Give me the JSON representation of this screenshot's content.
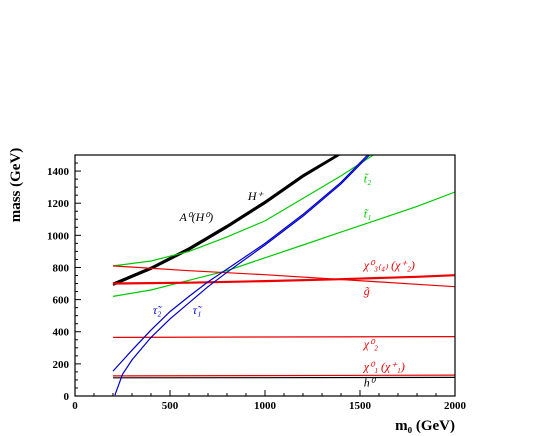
{
  "chart_data": {
    "type": "line",
    "xlabel": "m₀ (GeV)",
    "ylabel": "mass (GeV)",
    "xlim": [
      0,
      2000
    ],
    "ylim": [
      0,
      1500
    ],
    "xticks": [
      0,
      500,
      1000,
      1500,
      2000
    ],
    "yticks": [
      0,
      200,
      400,
      600,
      800,
      1000,
      1200,
      1400
    ],
    "grid": false,
    "colors": {
      "higgs": "#000000",
      "squark": "#00cc00",
      "gaugino": "#ee0000",
      "slepton": "#0000cc"
    },
    "series": [
      {
        "name": "A⁰(H⁰)",
        "color": "#000000",
        "x": [
          200,
          400,
          600,
          800,
          1000,
          1200,
          1390
        ],
        "y": [
          690,
          790,
          910,
          1050,
          1200,
          1365,
          1500
        ]
      },
      {
        "name": "H⁺",
        "color": "#000000",
        "x": [
          200,
          400,
          600,
          800,
          1000,
          1200,
          1380
        ],
        "y": [
          700,
          800,
          920,
          1060,
          1210,
          1375,
          1500
        ]
      },
      {
        "name": "t̃₂",
        "color": "#00cc00",
        "x": [
          200,
          400,
          600,
          800,
          1000,
          1200,
          1400,
          1570
        ],
        "y": [
          810,
          840,
          900,
          990,
          1090,
          1230,
          1370,
          1500
        ]
      },
      {
        "name": "t̃₁",
        "color": "#00cc00",
        "x": [
          200,
          400,
          600,
          800,
          1000,
          1200,
          1400,
          1600,
          1800,
          2000
        ],
        "y": [
          620,
          660,
          720,
          780,
          860,
          940,
          1020,
          1100,
          1180,
          1270
        ]
      },
      {
        "name": "χ⁰₃₍₄₎ (χ⁺₂)",
        "color": "#ee0000",
        "x": [
          200,
          600,
          1000,
          1400,
          1800,
          2000
        ],
        "y": [
          700,
          705,
          715,
          727,
          742,
          752
        ]
      },
      {
        "name": "g̃",
        "color": "#ee0000",
        "x": [
          200,
          600,
          1000,
          1400,
          1800,
          2000
        ],
        "y": [
          810,
          780,
          755,
          725,
          695,
          680
        ]
      },
      {
        "name": "χ⁰₂",
        "color": "#ee0000",
        "x": [
          200,
          1000,
          2000
        ],
        "y": [
          365,
          367,
          370
        ]
      },
      {
        "name": "χ⁰₁ (χ⁺₁)",
        "color": "#ee0000",
        "x": [
          200,
          1000,
          2000
        ],
        "y": [
          125,
          127,
          130
        ]
      },
      {
        "name": "h⁰",
        "color": "#000000",
        "x": [
          200,
          1000,
          2000
        ],
        "y": [
          113,
          114,
          116
        ]
      },
      {
        "name": "τ̃₂",
        "color": "#0000cc",
        "x": [
          200,
          300,
          400,
          500,
          600,
          700,
          800,
          1000,
          1200,
          1400,
          1540
        ],
        "y": [
          155,
          285,
          410,
          525,
          620,
          710,
          790,
          950,
          1130,
          1330,
          1500
        ]
      },
      {
        "name": "τ̃₁",
        "color": "#0000cc",
        "x": [
          210,
          250,
          300,
          400,
          500,
          600,
          700,
          800,
          1000,
          1200,
          1400,
          1550
        ],
        "y": [
          5,
          135,
          225,
          365,
          480,
          580,
          680,
          770,
          940,
          1120,
          1320,
          1500
        ]
      }
    ],
    "labels": [
      {
        "text": "H⁺",
        "x": 910,
        "y": 1220,
        "color": "#000000"
      },
      {
        "text": "A⁰(H⁰)",
        "x": 550,
        "y": 1090,
        "color": "#000000"
      },
      {
        "text": "t̃₂",
        "x": 1520,
        "y": 1330,
        "color": "#00cc00"
      },
      {
        "text": "t̃₁",
        "x": 1520,
        "y": 1110,
        "color": "#00cc00"
      },
      {
        "text": "χ⁰₃₍₄₎ (χ⁺₂)",
        "x": 1520,
        "y": 790,
        "color": "#ee0000"
      },
      {
        "text": "g̃",
        "x": 1520,
        "y": 630,
        "color": "#ee0000"
      },
      {
        "text": "χ⁰₂",
        "x": 1520,
        "y": 300,
        "color": "#ee0000"
      },
      {
        "text": "χ⁰₁ (χ⁺₁)",
        "x": 1520,
        "y": 160,
        "color": "#ee0000"
      },
      {
        "text": "h⁰",
        "x": 1520,
        "y": 60,
        "color": "#000000"
      },
      {
        "text": "τ̃₂",
        "x": 410,
        "y": 510,
        "color": "#0000cc"
      },
      {
        "text": "τ̃₁",
        "x": 620,
        "y": 510,
        "color": "#0000cc"
      }
    ]
  }
}
